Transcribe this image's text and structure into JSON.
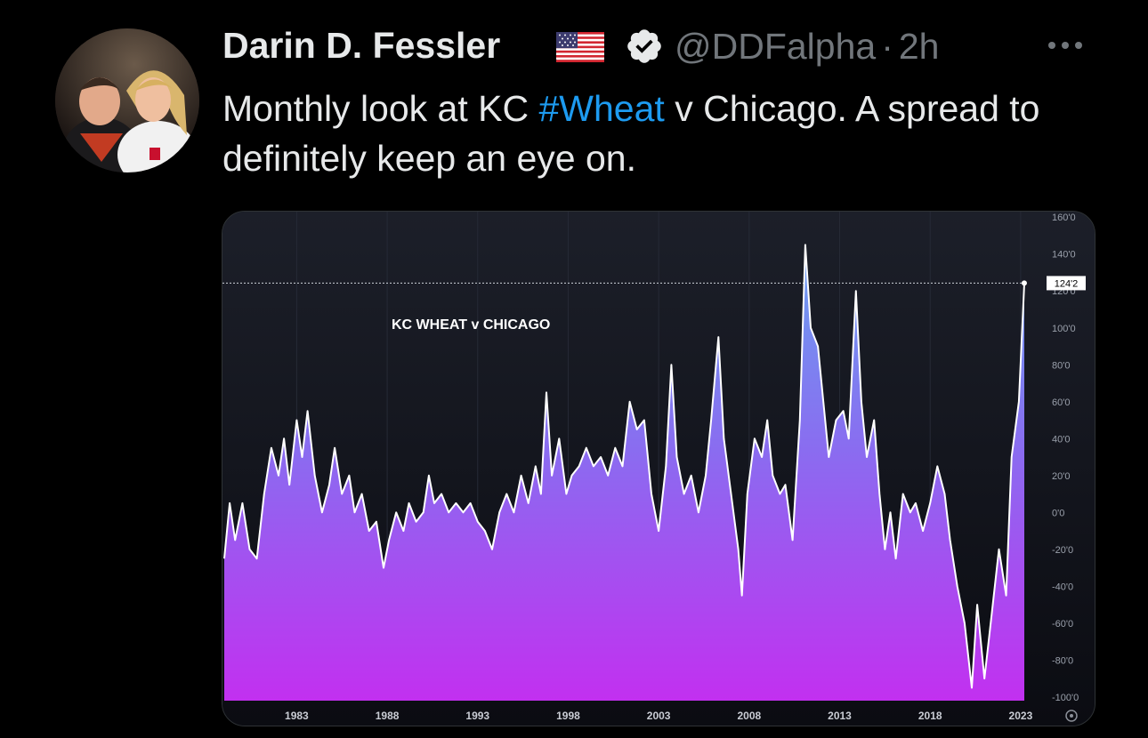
{
  "tweet": {
    "author_name": "Darin D. Fessler",
    "handle": "@DDFalpha",
    "time_separator": "·",
    "time": "2h",
    "text_before": "Monthly look at KC ",
    "hashtag": "#Wheat",
    "text_after": " v Chicago. A spread to definitely keep an eye on.",
    "flag_icon": "us-flag-icon",
    "verified_icon": "verified-badge-icon",
    "more_icon": "more-options-icon"
  },
  "chart_data": {
    "type": "area",
    "title": "KC WHEAT v CHICAGO",
    "xlabel": "",
    "ylabel": "",
    "x_ticks": [
      "1983",
      "1988",
      "1993",
      "1998",
      "2003",
      "2008",
      "2013",
      "2018",
      "2023"
    ],
    "y_ticks": [
      "160'0",
      "140'0",
      "120'0",
      "100'0",
      "80'0",
      "60'0",
      "40'0",
      "20'0",
      "0'0",
      "-20'0",
      "-40'0",
      "-60'0",
      "-80'0",
      "-100'0"
    ],
    "xlim": [
      1978.9,
      2023.3
    ],
    "ylim": [
      -102,
      163
    ],
    "last_value_label": "124'2",
    "last_value": 124.25,
    "grid": false,
    "series": [
      {
        "color_top": "#6aa0f0",
        "color_bottom": "#c230f0",
        "line_color": "#ffffff",
        "points": [
          [
            1979.0,
            -25
          ],
          [
            1979.3,
            5
          ],
          [
            1979.6,
            -15
          ],
          [
            1980.0,
            5
          ],
          [
            1980.4,
            -20
          ],
          [
            1980.8,
            -25
          ],
          [
            1981.2,
            10
          ],
          [
            1981.6,
            35
          ],
          [
            1982.0,
            20
          ],
          [
            1982.3,
            40
          ],
          [
            1982.6,
            15
          ],
          [
            1983.0,
            50
          ],
          [
            1983.3,
            30
          ],
          [
            1983.6,
            55
          ],
          [
            1984.0,
            20
          ],
          [
            1984.4,
            0
          ],
          [
            1984.8,
            15
          ],
          [
            1985.1,
            35
          ],
          [
            1985.5,
            10
          ],
          [
            1985.9,
            20
          ],
          [
            1986.2,
            0
          ],
          [
            1986.6,
            10
          ],
          [
            1987.0,
            -10
          ],
          [
            1987.4,
            -5
          ],
          [
            1987.8,
            -30
          ],
          [
            1988.1,
            -15
          ],
          [
            1988.5,
            0
          ],
          [
            1988.9,
            -10
          ],
          [
            1989.2,
            5
          ],
          [
            1989.6,
            -5
          ],
          [
            1990.0,
            0
          ],
          [
            1990.3,
            20
          ],
          [
            1990.6,
            5
          ],
          [
            1991.0,
            10
          ],
          [
            1991.4,
            0
          ],
          [
            1991.8,
            5
          ],
          [
            1992.2,
            0
          ],
          [
            1992.6,
            5
          ],
          [
            1993.0,
            -5
          ],
          [
            1993.4,
            -10
          ],
          [
            1993.8,
            -20
          ],
          [
            1994.2,
            0
          ],
          [
            1994.6,
            10
          ],
          [
            1995.0,
            0
          ],
          [
            1995.4,
            20
          ],
          [
            1995.8,
            5
          ],
          [
            1996.2,
            25
          ],
          [
            1996.5,
            10
          ],
          [
            1996.8,
            65
          ],
          [
            1997.1,
            20
          ],
          [
            1997.5,
            40
          ],
          [
            1997.9,
            10
          ],
          [
            1998.2,
            20
          ],
          [
            1998.6,
            25
          ],
          [
            1999.0,
            35
          ],
          [
            1999.4,
            25
          ],
          [
            1999.8,
            30
          ],
          [
            2000.2,
            20
          ],
          [
            2000.6,
            35
          ],
          [
            2001.0,
            25
          ],
          [
            2001.4,
            60
          ],
          [
            2001.8,
            45
          ],
          [
            2002.2,
            50
          ],
          [
            2002.6,
            10
          ],
          [
            2003.0,
            -10
          ],
          [
            2003.4,
            25
          ],
          [
            2003.7,
            80
          ],
          [
            2004.0,
            30
          ],
          [
            2004.4,
            10
          ],
          [
            2004.8,
            20
          ],
          [
            2005.2,
            0
          ],
          [
            2005.6,
            20
          ],
          [
            2005.9,
            50
          ],
          [
            2006.3,
            95
          ],
          [
            2006.6,
            40
          ],
          [
            2007.0,
            10
          ],
          [
            2007.4,
            -20
          ],
          [
            2007.6,
            -45
          ],
          [
            2007.9,
            10
          ],
          [
            2008.3,
            40
          ],
          [
            2008.7,
            30
          ],
          [
            2009.0,
            50
          ],
          [
            2009.3,
            20
          ],
          [
            2009.7,
            10
          ],
          [
            2010.0,
            15
          ],
          [
            2010.4,
            -15
          ],
          [
            2010.8,
            50
          ],
          [
            2011.1,
            145
          ],
          [
            2011.4,
            100
          ],
          [
            2011.8,
            90
          ],
          [
            2012.1,
            60
          ],
          [
            2012.4,
            30
          ],
          [
            2012.8,
            50
          ],
          [
            2013.2,
            55
          ],
          [
            2013.5,
            40
          ],
          [
            2013.9,
            120
          ],
          [
            2014.2,
            60
          ],
          [
            2014.5,
            30
          ],
          [
            2014.9,
            50
          ],
          [
            2015.2,
            10
          ],
          [
            2015.5,
            -20
          ],
          [
            2015.8,
            0
          ],
          [
            2016.1,
            -25
          ],
          [
            2016.5,
            10
          ],
          [
            2016.9,
            0
          ],
          [
            2017.2,
            5
          ],
          [
            2017.6,
            -10
          ],
          [
            2018.0,
            5
          ],
          [
            2018.4,
            25
          ],
          [
            2018.8,
            10
          ],
          [
            2019.1,
            -15
          ],
          [
            2019.5,
            -40
          ],
          [
            2019.9,
            -60
          ],
          [
            2020.3,
            -95
          ],
          [
            2020.6,
            -50
          ],
          [
            2021.0,
            -90
          ],
          [
            2021.4,
            -55
          ],
          [
            2021.8,
            -20
          ],
          [
            2022.2,
            -45
          ],
          [
            2022.5,
            30
          ],
          [
            2022.9,
            60
          ],
          [
            2023.2,
            124.25
          ]
        ]
      }
    ]
  }
}
